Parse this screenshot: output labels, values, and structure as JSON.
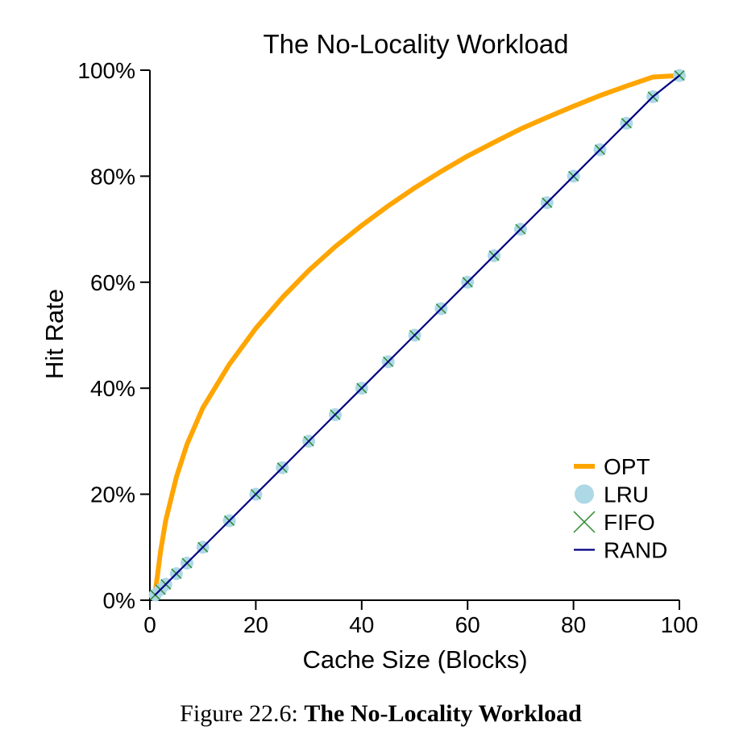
{
  "chart_data": {
    "type": "line",
    "title": "The No-Locality Workload",
    "xlabel": "Cache Size (Blocks)",
    "ylabel": "Hit Rate",
    "xlim": [
      0,
      100
    ],
    "ylim": [
      0,
      100
    ],
    "xticks": [
      "0",
      "20",
      "40",
      "60",
      "80",
      "100"
    ],
    "yticks": [
      "0%",
      "20%",
      "40%",
      "60%",
      "80%",
      "100%"
    ],
    "legend_position": "bottom-right",
    "grid": false,
    "x": [
      1,
      2,
      3,
      5,
      7,
      10,
      15,
      20,
      25,
      30,
      35,
      40,
      45,
      50,
      55,
      60,
      65,
      70,
      75,
      80,
      85,
      90,
      95,
      100
    ],
    "series": [
      {
        "name": "OPT",
        "color": "#ffa500",
        "marker": "line",
        "values": [
          1.4,
          9.1,
          15.1,
          23.2,
          29.4,
          36.3,
          44.5,
          51.3,
          57.1,
          62.2,
          66.7,
          70.7,
          74.4,
          77.8,
          80.9,
          83.8,
          86.4,
          88.9,
          91.1,
          93.2,
          95.2,
          97.0,
          98.7,
          99.0
        ]
      },
      {
        "name": "LRU",
        "color": "#add8e6",
        "marker": "circle",
        "values": [
          1,
          2,
          3,
          5,
          7,
          10,
          15,
          20,
          25,
          30,
          35,
          40,
          45,
          50,
          55,
          60,
          65,
          70,
          75,
          80,
          85,
          90,
          95,
          99
        ]
      },
      {
        "name": "FIFO",
        "color": "#2e8b2e",
        "marker": "x",
        "values": [
          1,
          2,
          3,
          5,
          7,
          10,
          15,
          20,
          25,
          30,
          35,
          40,
          45,
          50,
          55,
          60,
          65,
          70,
          75,
          80,
          85,
          90,
          95,
          99
        ]
      },
      {
        "name": "RAND",
        "color": "#000080",
        "marker": "line",
        "values": [
          1,
          2,
          3,
          5,
          7,
          10,
          15,
          20,
          25,
          30,
          35,
          40,
          45,
          50,
          55,
          60,
          65,
          70,
          75,
          80,
          85,
          90,
          95,
          99
        ]
      }
    ]
  },
  "caption": {
    "prefix": "Figure 22.6: ",
    "title": "The No-Locality Workload"
  }
}
